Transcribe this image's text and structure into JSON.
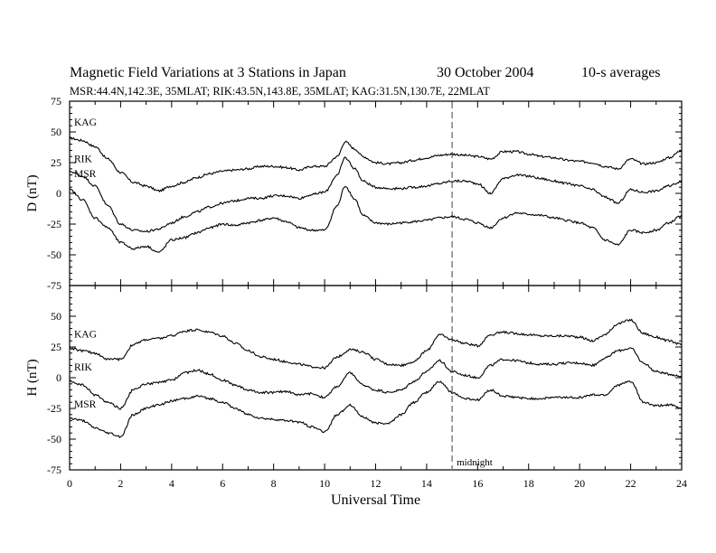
{
  "header": {
    "title": "Magnetic Field Variations at 3 Stations in Japan",
    "date": "30 October 2004",
    "averaging": "10-s averages",
    "stations_line": "MSR:44.4N,142.3E, 35MLAT;  RIK:43.5N,143.8E, 35MLAT;  KAG:31.5N,130.7E, 22MLAT"
  },
  "chart_data": [
    {
      "type": "line",
      "ylabel": "D (nT)",
      "xlim": [
        0,
        24
      ],
      "ylim": [
        -75,
        75
      ],
      "yticks": [
        -75,
        -50,
        -25,
        0,
        25,
        50,
        75
      ],
      "grid": false,
      "series": [
        {
          "name": "KAG",
          "x": [
            0,
            0.5,
            1,
            1.5,
            2,
            2.5,
            3,
            3.5,
            4,
            4.5,
            5,
            5.5,
            6,
            6.5,
            7,
            7.5,
            8,
            8.5,
            9,
            9.5,
            10,
            10.5,
            10.8,
            11.2,
            11.5,
            12,
            12.5,
            13,
            13.5,
            14,
            14.5,
            15,
            15.5,
            16,
            16.5,
            17,
            17.5,
            18,
            18.5,
            19,
            19.5,
            20,
            20.5,
            21,
            21.5,
            22,
            22.5,
            23,
            23.5,
            24
          ],
          "y": [
            45,
            43,
            38,
            28,
            17,
            9,
            6,
            2,
            6,
            9,
            13,
            16,
            18,
            19,
            20,
            22,
            22,
            21,
            19,
            22,
            22,
            30,
            42,
            36,
            30,
            25,
            24,
            25,
            27,
            29,
            31,
            32,
            31,
            30,
            28,
            34,
            34,
            32,
            30,
            29,
            27,
            26,
            25,
            22,
            20,
            28,
            24,
            25,
            29,
            35
          ]
        },
        {
          "name": "RIK",
          "x": [
            0,
            0.5,
            1,
            1.5,
            2,
            2.5,
            3,
            3.5,
            4,
            4.5,
            5,
            5.5,
            6,
            6.5,
            7,
            7.5,
            8,
            8.5,
            9,
            9.5,
            10,
            10.5,
            10.8,
            11.2,
            11.5,
            12,
            12.5,
            13,
            13.5,
            14,
            14.5,
            15,
            15.5,
            16,
            16.5,
            17,
            17.5,
            18,
            18.5,
            19,
            19.5,
            20,
            20.5,
            21,
            21.5,
            22,
            22.5,
            23,
            23.5,
            24
          ],
          "y": [
            18,
            14,
            6,
            -10,
            -25,
            -30,
            -31,
            -29,
            -24,
            -19,
            -15,
            -11,
            -8,
            -6,
            -4,
            -4,
            -2,
            -2,
            -4,
            -1,
            1,
            15,
            29,
            20,
            10,
            5,
            4,
            4,
            5,
            6,
            8,
            10,
            10,
            8,
            0,
            12,
            15,
            14,
            12,
            10,
            8,
            6,
            3,
            -3,
            -8,
            3,
            1,
            2,
            6,
            10
          ]
        },
        {
          "name": "MSR",
          "x": [
            0,
            0.5,
            1,
            1.5,
            2,
            2.5,
            3,
            3.5,
            4,
            4.5,
            5,
            5.5,
            6,
            6.5,
            7,
            7.5,
            8,
            8.5,
            9,
            9.5,
            10,
            10.5,
            10.8,
            11.2,
            11.5,
            12,
            12.5,
            13,
            13.5,
            14,
            14.5,
            15,
            15.5,
            16,
            16.5,
            17,
            17.5,
            18,
            18.5,
            19,
            19.5,
            20,
            20.5,
            21,
            21.5,
            22,
            22.5,
            23,
            23.5,
            24
          ],
          "y": [
            3,
            -5,
            -20,
            -28,
            -40,
            -45,
            -43,
            -48,
            -38,
            -36,
            -32,
            -28,
            -25,
            -26,
            -24,
            -22,
            -20,
            -23,
            -28,
            -30,
            -30,
            -10,
            6,
            -5,
            -18,
            -24,
            -25,
            -24,
            -23,
            -22,
            -20,
            -19,
            -21,
            -24,
            -28,
            -20,
            -16,
            -17,
            -18,
            -20,
            -22,
            -24,
            -28,
            -38,
            -42,
            -30,
            -32,
            -30,
            -24,
            -18
          ]
        }
      ]
    },
    {
      "type": "line",
      "ylabel": "H (nT)",
      "xlabel": "Universal Time",
      "xlim": [
        0,
        24
      ],
      "ylim": [
        -75,
        75
      ],
      "xticks": [
        0,
        2,
        4,
        6,
        8,
        10,
        12,
        14,
        16,
        18,
        20,
        22,
        24
      ],
      "yticks": [
        -75,
        -50,
        -25,
        0,
        25,
        50
      ],
      "grid": false,
      "annotations": [
        {
          "text": "midnight",
          "x": 15
        }
      ],
      "series": [
        {
          "name": "KAG",
          "x": [
            0,
            0.5,
            1,
            1.5,
            2,
            2.5,
            3,
            3.5,
            4,
            4.5,
            5,
            5.5,
            6,
            6.5,
            7,
            7.5,
            8,
            8.5,
            9,
            9.5,
            10,
            10.5,
            11,
            11.5,
            12,
            12.5,
            13,
            13.5,
            14,
            14.5,
            15,
            15.5,
            16,
            16.5,
            17,
            17.5,
            18,
            18.5,
            19,
            19.5,
            20,
            20.5,
            21,
            21.5,
            22,
            22.5,
            23,
            23.5,
            24
          ],
          "y": [
            24,
            22,
            20,
            15,
            15,
            27,
            31,
            32,
            34,
            38,
            39,
            37,
            34,
            28,
            22,
            17,
            15,
            13,
            11,
            9,
            8,
            17,
            23,
            21,
            15,
            11,
            10,
            13,
            22,
            35,
            31,
            28,
            26,
            35,
            37,
            36,
            35,
            34,
            34,
            34,
            33,
            30,
            35,
            44,
            47,
            36,
            33,
            30,
            27
          ]
        },
        {
          "name": "RIK",
          "x": [
            0,
            0.5,
            1,
            1.5,
            2,
            2.5,
            3,
            3.5,
            4,
            4.5,
            5,
            5.5,
            6,
            6.5,
            7,
            7.5,
            8,
            8.5,
            9,
            9.5,
            10,
            10.5,
            11,
            11.5,
            12,
            12.5,
            13,
            13.5,
            14,
            14.5,
            15,
            15.5,
            16,
            16.5,
            17,
            17.5,
            18,
            18.5,
            19,
            19.5,
            20,
            20.5,
            21,
            21.5,
            22,
            22.5,
            23,
            23.5,
            24
          ],
          "y": [
            -3,
            -6,
            -14,
            -20,
            -25,
            -10,
            -5,
            -4,
            -2,
            4,
            6,
            3,
            -2,
            -6,
            -10,
            -12,
            -12,
            -11,
            -14,
            -13,
            -16,
            -7,
            4,
            -6,
            -10,
            -12,
            -10,
            -3,
            5,
            14,
            5,
            2,
            0,
            10,
            15,
            14,
            12,
            11,
            11,
            12,
            12,
            10,
            16,
            22,
            24,
            12,
            5,
            3,
            1
          ]
        },
        {
          "name": "MSR",
          "x": [
            0,
            0.5,
            1,
            1.5,
            2,
            2.5,
            3,
            3.5,
            4,
            4.5,
            5,
            5.5,
            6,
            6.5,
            7,
            7.5,
            8,
            8.5,
            9,
            9.5,
            10,
            10.5,
            11,
            11.5,
            12,
            12.5,
            13,
            13.5,
            14,
            14.5,
            15,
            15.5,
            16,
            16.5,
            17,
            17.5,
            18,
            18.5,
            19,
            19.5,
            20,
            20.5,
            21,
            21.5,
            22,
            22.5,
            23,
            23.5,
            24
          ],
          "y": [
            -33,
            -35,
            -41,
            -45,
            -48,
            -30,
            -25,
            -22,
            -19,
            -17,
            -15,
            -17,
            -20,
            -25,
            -30,
            -33,
            -34,
            -35,
            -36,
            -40,
            -44,
            -30,
            -22,
            -32,
            -37,
            -37,
            -30,
            -20,
            -12,
            -3,
            -12,
            -17,
            -18,
            -10,
            -15,
            -16,
            -17,
            -17,
            -16,
            -16,
            -16,
            -14,
            -14,
            -6,
            -3,
            -20,
            -23,
            -22,
            -25
          ]
        }
      ]
    }
  ]
}
